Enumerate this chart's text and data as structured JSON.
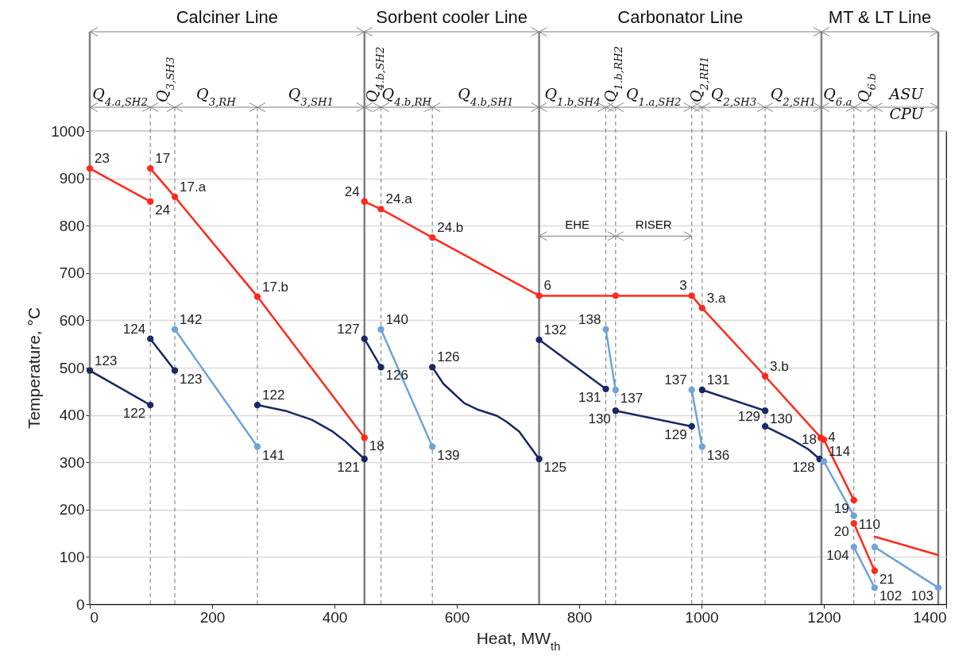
{
  "chart_data": {
    "type": "line",
    "xlabel": "Heat, MW$_{th}$",
    "ylabel": "Temperature, °C",
    "xlim": [
      0,
      1400
    ],
    "xticks": [
      0,
      200,
      400,
      600,
      800,
      1000,
      1200,
      1400
    ],
    "ylim": [
      0,
      1000
    ],
    "yticks": [
      0,
      100,
      200,
      300,
      400,
      500,
      600,
      700,
      800,
      900,
      1000
    ],
    "grid": "y",
    "marker": "circle",
    "line_style": "solid",
    "series": [
      {
        "type": "line",
        "color": "#ff2a1e",
        "x": [
          0,
          99
        ],
        "values": [
          921,
          851
        ]
      },
      {
        "type": "line",
        "color": "#ff2a1e",
        "x": [
          99,
          139,
          274,
          449
        ],
        "values": [
          921,
          861,
          650,
          352
        ]
      },
      {
        "type": "line",
        "color": "#ff2a1e",
        "x": [
          449,
          476,
          560,
          734.5,
          859.5,
          984,
          1001,
          1104,
          1195
        ],
        "values": [
          851,
          835,
          775,
          652,
          652,
          652,
          626,
          482,
          352
        ]
      },
      {
        "type": "line",
        "color": "#ff2a1e",
        "x": [
          1200,
          1249
        ],
        "values": [
          348,
          220
        ]
      },
      {
        "type": "line",
        "color": "#ff2a1e",
        "x": [
          1249,
          1283
        ],
        "values": [
          171,
          71
        ]
      },
      {
        "type": "line",
        "color": "#ff2a1e",
        "marker": "none",
        "x": [
          1283,
          1387
        ],
        "values": [
          143,
          104
        ]
      },
      {
        "type": "line",
        "color": "#1a2862",
        "x": [
          0,
          99
        ],
        "values": [
          494,
          421
        ]
      },
      {
        "type": "line",
        "color": "#1a2862",
        "x": [
          99,
          139
        ],
        "values": [
          561,
          494
        ]
      },
      {
        "type": "line",
        "color": "#6fa4d8",
        "x": [
          139,
          274
        ],
        "values": [
          581,
          333
        ]
      },
      {
        "type": "line",
        "color": "#1a2862",
        "marker": "none",
        "x": [
          274,
          322,
          363,
          397,
          417,
          449
        ],
        "values": [
          421,
          408,
          390,
          365,
          345,
          307
        ]
      },
      {
        "type": "scatter",
        "color": "#1a2862",
        "x": [
          274,
          449
        ],
        "values": [
          421,
          307
        ]
      },
      {
        "type": "line",
        "color": "#1a2862",
        "x": [
          449,
          476
        ],
        "values": [
          561,
          501
        ]
      },
      {
        "type": "line",
        "color": "#6fa4d8",
        "x": [
          476,
          560
        ],
        "values": [
          581,
          333
        ]
      },
      {
        "type": "line",
        "color": "#1a2862",
        "marker": "none",
        "x": [
          560,
          578,
          612,
          635,
          666,
          682,
          702,
          734.5
        ],
        "values": [
          501,
          466,
          425,
          411,
          398,
          385,
          365,
          307
        ]
      },
      {
        "type": "scatter",
        "color": "#1a2862",
        "x": [
          560,
          734.5
        ],
        "values": [
          501,
          307
        ]
      },
      {
        "type": "line",
        "color": "#1a2862",
        "x": [
          734.5,
          843.5
        ],
        "values": [
          559,
          455
        ]
      },
      {
        "type": "line",
        "color": "#6fa4d8",
        "x": [
          843.5,
          859.5
        ],
        "values": [
          581,
          453
        ]
      },
      {
        "type": "line",
        "color": "#1a2862",
        "x": [
          859.5,
          984
        ],
        "values": [
          409,
          376
        ]
      },
      {
        "type": "line",
        "color": "#6fa4d8",
        "x": [
          984,
          1001
        ],
        "values": [
          453,
          333
        ]
      },
      {
        "type": "line",
        "color": "#1a2862",
        "x": [
          1001,
          1104
        ],
        "values": [
          453,
          409
        ]
      },
      {
        "type": "line",
        "color": "#1a2862",
        "marker": "none",
        "x": [
          1104,
          1148,
          1174,
          1193
        ],
        "values": [
          376,
          348,
          328,
          307
        ]
      },
      {
        "type": "scatter",
        "color": "#1a2862",
        "x": [
          1104,
          1193
        ],
        "values": [
          376,
          307
        ]
      },
      {
        "type": "line",
        "color": "#6fa4d8",
        "x": [
          1200,
          1249
        ],
        "values": [
          302,
          187
        ]
      },
      {
        "type": "line",
        "color": "#6fa4d8",
        "x": [
          1249,
          1283
        ],
        "values": [
          121,
          35
        ]
      },
      {
        "type": "line",
        "color": "#6fa4d8",
        "x": [
          1283,
          1387
        ],
        "values": [
          121,
          35
        ]
      }
    ],
    "ref_lines": [
      {
        "axis": "x",
        "value": 0,
        "line_style": "solid",
        "color": "#7f7f7f"
      },
      {
        "axis": "x",
        "value": 449,
        "line_style": "solid",
        "color": "#7f7f7f"
      },
      {
        "axis": "x",
        "value": 734.5,
        "line_style": "solid",
        "color": "#7f7f7f"
      },
      {
        "axis": "x",
        "value": 1196,
        "line_style": "solid",
        "color": "#7f7f7f"
      },
      {
        "axis": "x",
        "value": 1387,
        "line_style": "solid",
        "color": "#7f7f7f"
      },
      {
        "axis": "x",
        "value": 99,
        "line_style": "dashed",
        "color": "#8c8c8c"
      },
      {
        "axis": "x",
        "value": 139,
        "line_style": "dashed",
        "color": "#8c8c8c"
      },
      {
        "axis": "x",
        "value": 274,
        "line_style": "dashed",
        "color": "#8c8c8c"
      },
      {
        "axis": "x",
        "value": 476,
        "line_style": "dashed",
        "color": "#8c8c8c"
      },
      {
        "axis": "x",
        "value": 560,
        "line_style": "dashed",
        "color": "#8c8c8c"
      },
      {
        "axis": "x",
        "value": 843.5,
        "line_style": "dashed",
        "color": "#8c8c8c"
      },
      {
        "axis": "x",
        "value": 859.5,
        "line_style": "dashed",
        "color": "#8c8c8c"
      },
      {
        "axis": "x",
        "value": 984,
        "line_style": "dashed",
        "color": "#8c8c8c"
      },
      {
        "axis": "x",
        "value": 1001,
        "line_style": "dashed",
        "color": "#8c8c8c"
      },
      {
        "axis": "x",
        "value": 1104,
        "line_style": "dashed",
        "color": "#8c8c8c"
      },
      {
        "axis": "x",
        "value": 1249,
        "line_style": "dashed",
        "color": "#8c8c8c"
      },
      {
        "axis": "x",
        "value": 1283,
        "line_style": "dashed",
        "color": "#8c8c8c"
      }
    ],
    "annotations": [
      "Calciner Line",
      "Sorbent cooler Line",
      "Carbonator Line",
      "MT & LT Line",
      "Q$_{4.a,SH2}$",
      "Q$_{3,SH3}$",
      "Q$_{3,RH}$",
      "Q$_{3,SH1}$",
      "Q$_{4.b,SH2}$",
      "Q$_{4.b,RH}$",
      "Q$_{4.b,SH1}$",
      "Q$_{1.b,SH4}$",
      "Q$_{1.b,RH2}$",
      "Q$_{1.a,SH2}$",
      "Q$_{2,RH1}$",
      "Q$_{2,SH3}$",
      "Q$_{2,SH1}$",
      "Q$_{6.a}$",
      "Q$_{6.b}$",
      "ASU\nCPU",
      {
        "text": "EHE",
        "x": 734.5,
        "y": 778
      },
      {
        "text": "RISER",
        "x": 859.5,
        "y": 778
      },
      {
        "text": "23",
        "x": 0,
        "y": 921
      },
      {
        "text": "24",
        "x": 99,
        "y": 851
      },
      {
        "text": "17",
        "x": 99,
        "y": 921
      },
      {
        "text": "17.a",
        "x": 139,
        "y": 861
      },
      {
        "text": "17.b",
        "x": 274,
        "y": 650
      },
      {
        "text": "18",
        "x": 449,
        "y": 352
      },
      {
        "text": "123",
        "x": 0,
        "y": 494
      },
      {
        "text": "122",
        "x": 99,
        "y": 421
      },
      {
        "text": "124",
        "x": 99,
        "y": 561
      },
      {
        "text": "123",
        "x": 139,
        "y": 494
      },
      {
        "text": "142",
        "x": 139,
        "y": 581
      },
      {
        "text": "141",
        "x": 274,
        "y": 333
      },
      {
        "text": "122",
        "x": 274,
        "y": 421
      },
      {
        "text": "121",
        "x": 449,
        "y": 307
      },
      {
        "text": "127",
        "x": 449,
        "y": 561
      },
      {
        "text": "126",
        "x": 476,
        "y": 501
      },
      {
        "text": "140",
        "x": 476,
        "y": 581
      },
      {
        "text": "139",
        "x": 560,
        "y": 333
      },
      {
        "text": "126",
        "x": 560,
        "y": 501
      },
      {
        "text": "125",
        "x": 734.5,
        "y": 307
      },
      {
        "text": "24",
        "x": 449,
        "y": 851
      },
      {
        "text": "24.a",
        "x": 476,
        "y": 835
      },
      {
        "text": "24.b",
        "x": 560,
        "y": 775
      },
      {
        "text": "6",
        "x": 734.5,
        "y": 652
      },
      {
        "text": "132",
        "x": 734.5,
        "y": 559
      },
      {
        "text": "131",
        "x": 843.5,
        "y": 455
      },
      {
        "text": "138",
        "x": 843.5,
        "y": 581
      },
      {
        "text": "137",
        "x": 859.5,
        "y": 453
      },
      {
        "text": "130",
        "x": 859.5,
        "y": 409
      },
      {
        "text": "129",
        "x": 984,
        "y": 376
      },
      {
        "text": "137",
        "x": 984,
        "y": 453
      },
      {
        "text": "136",
        "x": 1001,
        "y": 333
      },
      {
        "text": "131",
        "x": 1001,
        "y": 453
      },
      {
        "text": "130",
        "x": 1104,
        "y": 409
      },
      {
        "text": "129",
        "x": 1104,
        "y": 376
      },
      {
        "text": "128",
        "x": 1193,
        "y": 307
      },
      {
        "text": "3",
        "x": 984,
        "y": 652
      },
      {
        "text": "3.a",
        "x": 1001,
        "y": 626
      },
      {
        "text": "3.b",
        "x": 1104,
        "y": 482
      },
      {
        "text": "4",
        "x": 1195,
        "y": 352
      },
      {
        "text": "18",
        "x": 1200,
        "y": 348
      },
      {
        "text": "19",
        "x": 1249,
        "y": 220
      },
      {
        "text": "20",
        "x": 1249,
        "y": 171
      },
      {
        "text": "21",
        "x": 1283,
        "y": 71
      },
      {
        "text": "114",
        "x": 1200,
        "y": 302
      },
      {
        "text": "110",
        "x": 1249,
        "y": 187
      },
      {
        "text": "104",
        "x": 1249,
        "y": 121
      },
      {
        "text": "102",
        "x": 1283,
        "y": 35
      },
      {
        "text": "103",
        "x": 1387,
        "y": 35
      }
    ]
  }
}
